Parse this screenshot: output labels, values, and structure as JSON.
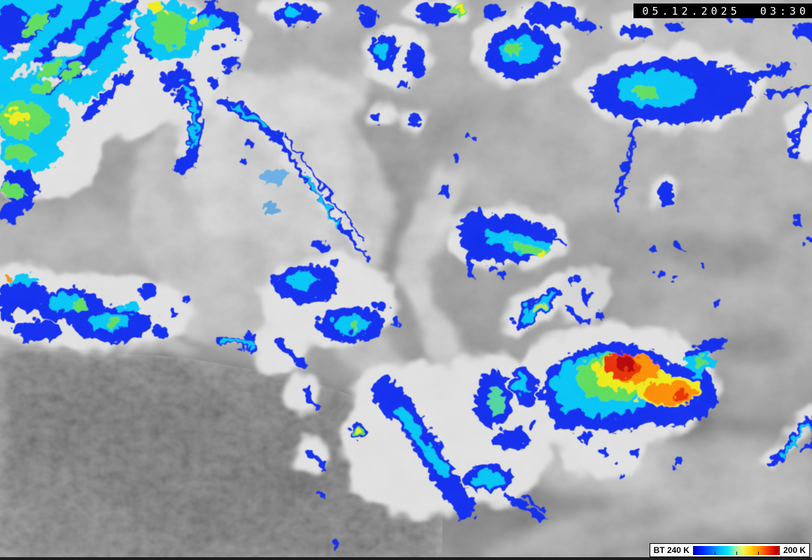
{
  "timestamp": {
    "text": "05.12.2025  03:30"
  },
  "legend": {
    "title": "BT 240 K",
    "end_label": "200 K",
    "gradient_style": "background:linear-gradient(90deg,#0000b2 0%,#0022ff 10%,#0064ff 20%,#00b0ff 30%,#00e6f2 40%,#8cf2b4 48%,#eef564 57%,#ffd200 67%,#ff8a00 77%,#f23000 87%,#c40000 96%,#a80000 100%)",
    "ticks_percent": [
      25,
      50,
      75
    ]
  },
  "enhancement_palette": {
    "blue": "#0c2cf2",
    "cyan": "#00c8fa",
    "green": "#5ee05c",
    "yellow": "#f2ef18",
    "orange": "#ff8e00",
    "red": "#ea2e00",
    "dark_red": "#b80000"
  }
}
